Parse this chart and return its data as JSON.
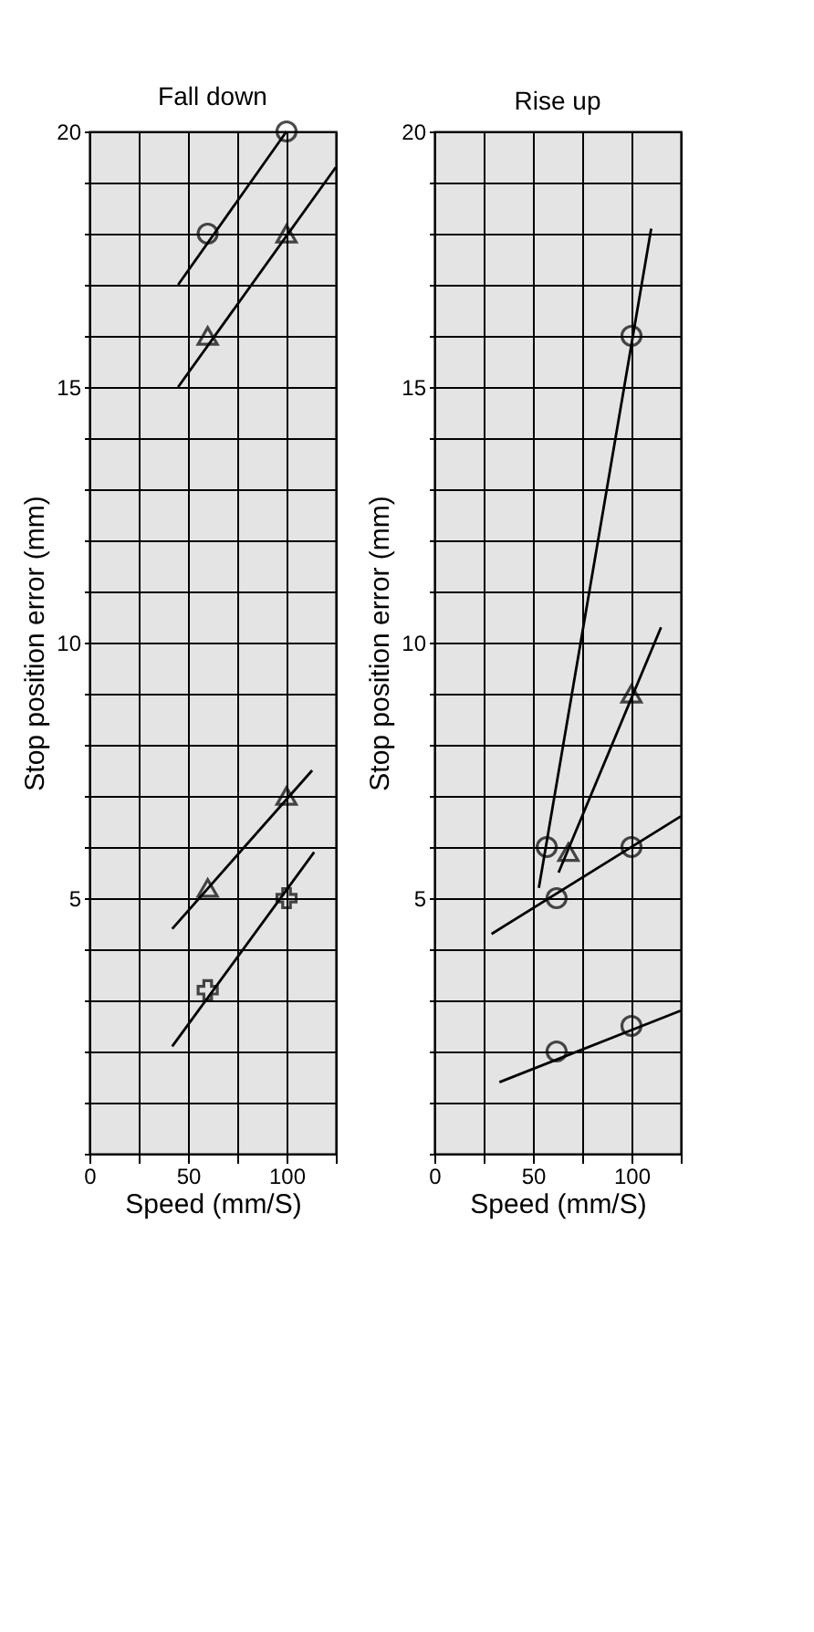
{
  "chart_data": [
    {
      "type": "scatter",
      "title": "Fall down",
      "xlabel": "Speed (mm/S)",
      "ylabel": "Stop position error (mm)",
      "grid": true,
      "xlim": [
        0,
        125
      ],
      "ylim": [
        0,
        20
      ],
      "xticks": [
        0,
        {
          "value": 25,
          "label": null
        },
        50,
        {
          "value": 75,
          "label": null
        },
        100,
        {
          "value": 125,
          "label": null
        }
      ],
      "yticks": [
        {
          "value": 0,
          "label": null
        },
        {
          "value": 1,
          "label": null
        },
        {
          "value": 2,
          "label": null
        },
        {
          "value": 3,
          "label": null
        },
        {
          "value": 4,
          "label": null
        },
        5,
        {
          "value": 6,
          "label": null
        },
        {
          "value": 7,
          "label": null
        },
        {
          "value": 8,
          "label": null
        },
        {
          "value": 9,
          "label": null
        },
        10,
        {
          "value": 11,
          "label": null
        },
        {
          "value": 12,
          "label": null
        },
        {
          "value": 13,
          "label": null
        },
        {
          "value": 14,
          "label": null
        },
        15,
        {
          "value": 16,
          "label": null
        },
        {
          "value": 17,
          "label": null
        },
        {
          "value": 18,
          "label": null
        },
        {
          "value": 19,
          "label": null
        },
        20
      ],
      "series": [
        {
          "marker": "circle",
          "color": "#000000",
          "x": [
            60,
            100
          ],
          "values": [
            18,
            20
          ]
        },
        {
          "marker": "triangle",
          "color": "#000000",
          "x": [
            60,
            100
          ],
          "values": [
            16,
            18
          ]
        },
        {
          "marker": "triangle",
          "color": "#000000",
          "x": [
            60,
            100
          ],
          "values": [
            5.2,
            7
          ]
        },
        {
          "marker": "cross",
          "color": "#000000",
          "x": [
            60,
            100
          ],
          "values": [
            3.2,
            5
          ]
        },
        {
          "type": "line",
          "marker": "none",
          "color": "#000000",
          "x": [
            45,
            100
          ],
          "values": [
            17,
            20
          ]
        },
        {
          "type": "line",
          "marker": "none",
          "color": "#000000",
          "x": [
            45,
            125
          ],
          "values": [
            15,
            19.3
          ]
        },
        {
          "type": "line",
          "marker": "none",
          "color": "#000000",
          "x": [
            42,
            113
          ],
          "values": [
            4.4,
            7.5
          ]
        },
        {
          "type": "line",
          "marker": "none",
          "color": "#000000",
          "x": [
            42,
            114
          ],
          "values": [
            2.1,
            5.9
          ]
        }
      ]
    },
    {
      "type": "scatter",
      "title": "Rise up",
      "xlabel": "Speed (mm/S)",
      "ylabel": "Stop position error (mm)",
      "grid": true,
      "xlim": [
        0,
        125
      ],
      "ylim": [
        0,
        20
      ],
      "xticks": [
        0,
        {
          "value": 25,
          "label": null
        },
        50,
        {
          "value": 75,
          "label": null
        },
        100,
        {
          "value": 125,
          "label": null
        }
      ],
      "yticks": [
        {
          "value": 0,
          "label": null
        },
        {
          "value": 1,
          "label": null
        },
        {
          "value": 2,
          "label": null
        },
        {
          "value": 3,
          "label": null
        },
        {
          "value": 4,
          "label": null
        },
        5,
        {
          "value": 6,
          "label": null
        },
        {
          "value": 7,
          "label": null
        },
        {
          "value": 8,
          "label": null
        },
        {
          "value": 9,
          "label": null
        },
        10,
        {
          "value": 11,
          "label": null
        },
        {
          "value": 12,
          "label": null
        },
        {
          "value": 13,
          "label": null
        },
        {
          "value": 14,
          "label": null
        },
        15,
        {
          "value": 16,
          "label": null
        },
        {
          "value": 17,
          "label": null
        },
        {
          "value": 18,
          "label": null
        },
        {
          "value": 19,
          "label": null
        },
        20
      ],
      "series": [
        {
          "marker": "circle",
          "color": "#000000",
          "x": [
            57,
            100
          ],
          "values": [
            6,
            16
          ]
        },
        {
          "marker": "triangle",
          "color": "#000000",
          "x": [
            68,
            100
          ],
          "values": [
            5.9,
            9
          ]
        },
        {
          "marker": "circle",
          "color": "#000000",
          "x": [
            62,
            100
          ],
          "values": [
            5,
            6
          ]
        },
        {
          "marker": "circle",
          "color": "#000000",
          "x": [
            62,
            100
          ],
          "values": [
            2,
            2.5
          ]
        },
        {
          "type": "line",
          "marker": "none",
          "color": "#000000",
          "x": [
            53,
            110
          ],
          "values": [
            5.2,
            18.1
          ]
        },
        {
          "type": "line",
          "marker": "none",
          "color": "#000000",
          "x": [
            63,
            115
          ],
          "values": [
            5.5,
            10.3
          ]
        },
        {
          "type": "line",
          "marker": "none",
          "color": "#000000",
          "x": [
            29,
            125
          ],
          "values": [
            4.3,
            6.6
          ]
        },
        {
          "type": "line",
          "marker": "none",
          "color": "#000000",
          "x": [
            33,
            125
          ],
          "values": [
            1.4,
            2.8
          ]
        }
      ]
    }
  ]
}
